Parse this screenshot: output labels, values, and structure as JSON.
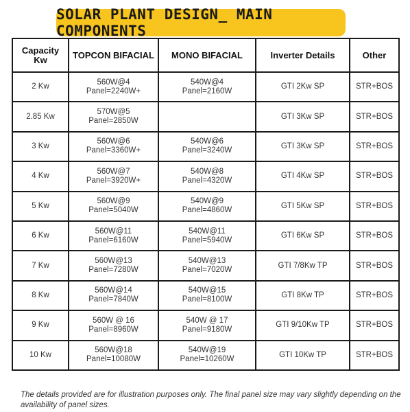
{
  "title": "SOLAR PLANT DESIGN_ MAIN COMPONENTS",
  "headers": {
    "capacity": [
      "Capacity",
      "Kw"
    ],
    "topcon": [
      "TOPCON",
      "BIFACIAL"
    ],
    "mono": "MONO BIFACIAL",
    "inverter": "Inverter Details",
    "other": "Other"
  },
  "rows": [
    {
      "capacity": "2 Kw",
      "topcon": [
        "560W@4",
        "Panel=2240W+"
      ],
      "mono": [
        "540W@4",
        "Panel=2160W"
      ],
      "inverter": "GTI 2Kw SP",
      "other": "STR+BOS"
    },
    {
      "capacity": "2.85 Kw",
      "topcon": [
        "570W@5",
        "Panel=2850W"
      ],
      "mono": [
        "",
        ""
      ],
      "inverter": "GTI 3Kw SP",
      "other": "STR+BOS"
    },
    {
      "capacity": "3 Kw",
      "topcon": [
        "560W@6",
        "Panel=3360W+"
      ],
      "mono": [
        "540W@6",
        "Panel=3240W"
      ],
      "inverter": "GTI 3Kw SP",
      "other": "STR+BOS"
    },
    {
      "capacity": "4 Kw",
      "topcon": [
        "560W@7",
        "Panel=3920W+"
      ],
      "mono": [
        "540W@8",
        "Panel=4320W"
      ],
      "inverter": "GTI 4Kw SP",
      "other": "STR+BOS"
    },
    {
      "capacity": "5 Kw",
      "topcon": [
        "560W@9",
        "Panel=5040W"
      ],
      "mono": [
        "540W@9",
        "Panel=4860W"
      ],
      "inverter": "GTI 5Kw SP",
      "other": "STR+BOS"
    },
    {
      "capacity": "6 Kw",
      "topcon": [
        "560W@11",
        "Panel=6160W"
      ],
      "mono": [
        "540W@11",
        "Panel=5940W"
      ],
      "inverter": "GTI 6Kw SP",
      "other": "STR+BOS"
    },
    {
      "capacity": "7 Kw",
      "topcon": [
        "560W@13",
        "Panel=7280W"
      ],
      "mono": [
        "540W@13",
        "Panel=7020W"
      ],
      "inverter": "GTI 7/8Kw TP",
      "other": "STR+BOS"
    },
    {
      "capacity": "8 Kw",
      "topcon": [
        "560W@14",
        "Panel=7840W"
      ],
      "mono": [
        "540W@15",
        "Panel=8100W"
      ],
      "inverter": "GTI 8Kw TP",
      "other": "STR+BOS"
    },
    {
      "capacity": "9 Kw",
      "topcon": [
        "560W @ 16",
        "Panel=8960W"
      ],
      "mono": [
        "540W @ 17",
        "Panel=9180W"
      ],
      "inverter": "GTI 9/10Kw TP",
      "other": "STR+BOS"
    },
    {
      "capacity": "10 Kw",
      "topcon": [
        "560W@18",
        "Panel=10080W"
      ],
      "mono": [
        "540W@19",
        "Panel=10260W"
      ],
      "inverter": "GTI 10Kw TP",
      "other": "STR+BOS"
    }
  ],
  "footer": "The details provided are for illustration purposes only. The final panel size may vary slightly depending on the availability of panel sizes.",
  "colors": {
    "banner": "#f7c51e",
    "border": "#1a1a1a"
  }
}
